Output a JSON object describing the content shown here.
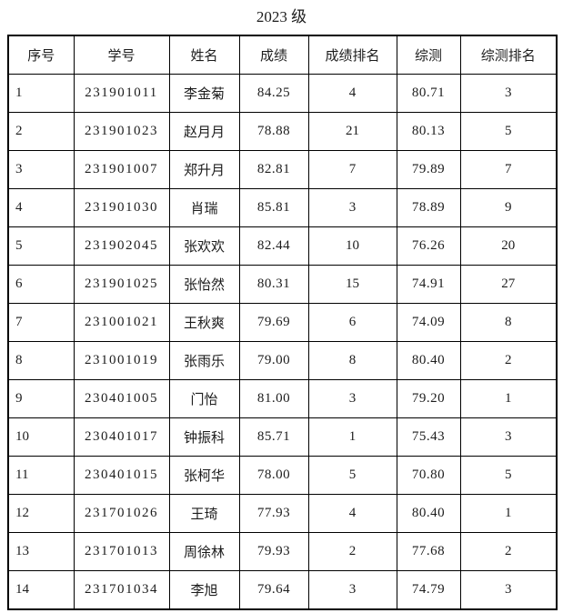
{
  "page": {
    "title": "2023 级"
  },
  "table": {
    "headers": [
      "序号",
      "学号",
      "姓名",
      "成绩",
      "成绩排名",
      "综测",
      "综测排名"
    ],
    "rows": [
      [
        "1",
        "231901011",
        "李金菊",
        "84.25",
        "4",
        "80.71",
        "3"
      ],
      [
        "2",
        "231901023",
        "赵月月",
        "78.88",
        "21",
        "80.13",
        "5"
      ],
      [
        "3",
        "231901007",
        "郑升月",
        "82.81",
        "7",
        "79.89",
        "7"
      ],
      [
        "4",
        "231901030",
        "肖瑞",
        "85.81",
        "3",
        "78.89",
        "9"
      ],
      [
        "5",
        "231902045",
        "张欢欢",
        "82.44",
        "10",
        "76.26",
        "20"
      ],
      [
        "6",
        "231901025",
        "张怡然",
        "80.31",
        "15",
        "74.91",
        "27"
      ],
      [
        "7",
        "231001021",
        "王秋爽",
        "79.69",
        "6",
        "74.09",
        "8"
      ],
      [
        "8",
        "231001019",
        "张雨乐",
        "79.00",
        "8",
        "80.40",
        "2"
      ],
      [
        "9",
        "230401005",
        "门怡",
        "81.00",
        "3",
        "79.20",
        "1"
      ],
      [
        "10",
        "230401017",
        "钟振科",
        "85.71",
        "1",
        "75.43",
        "3"
      ],
      [
        "11",
        "230401015",
        "张柯华",
        "78.00",
        "5",
        "70.80",
        "5"
      ],
      [
        "12",
        "231701026",
        "王琦",
        "77.93",
        "4",
        "80.40",
        "1"
      ],
      [
        "13",
        "231701013",
        "周徐林",
        "79.93",
        "2",
        "77.68",
        "2"
      ],
      [
        "14",
        "231701034",
        "李旭",
        "79.64",
        "3",
        "74.79",
        "3"
      ]
    ]
  }
}
